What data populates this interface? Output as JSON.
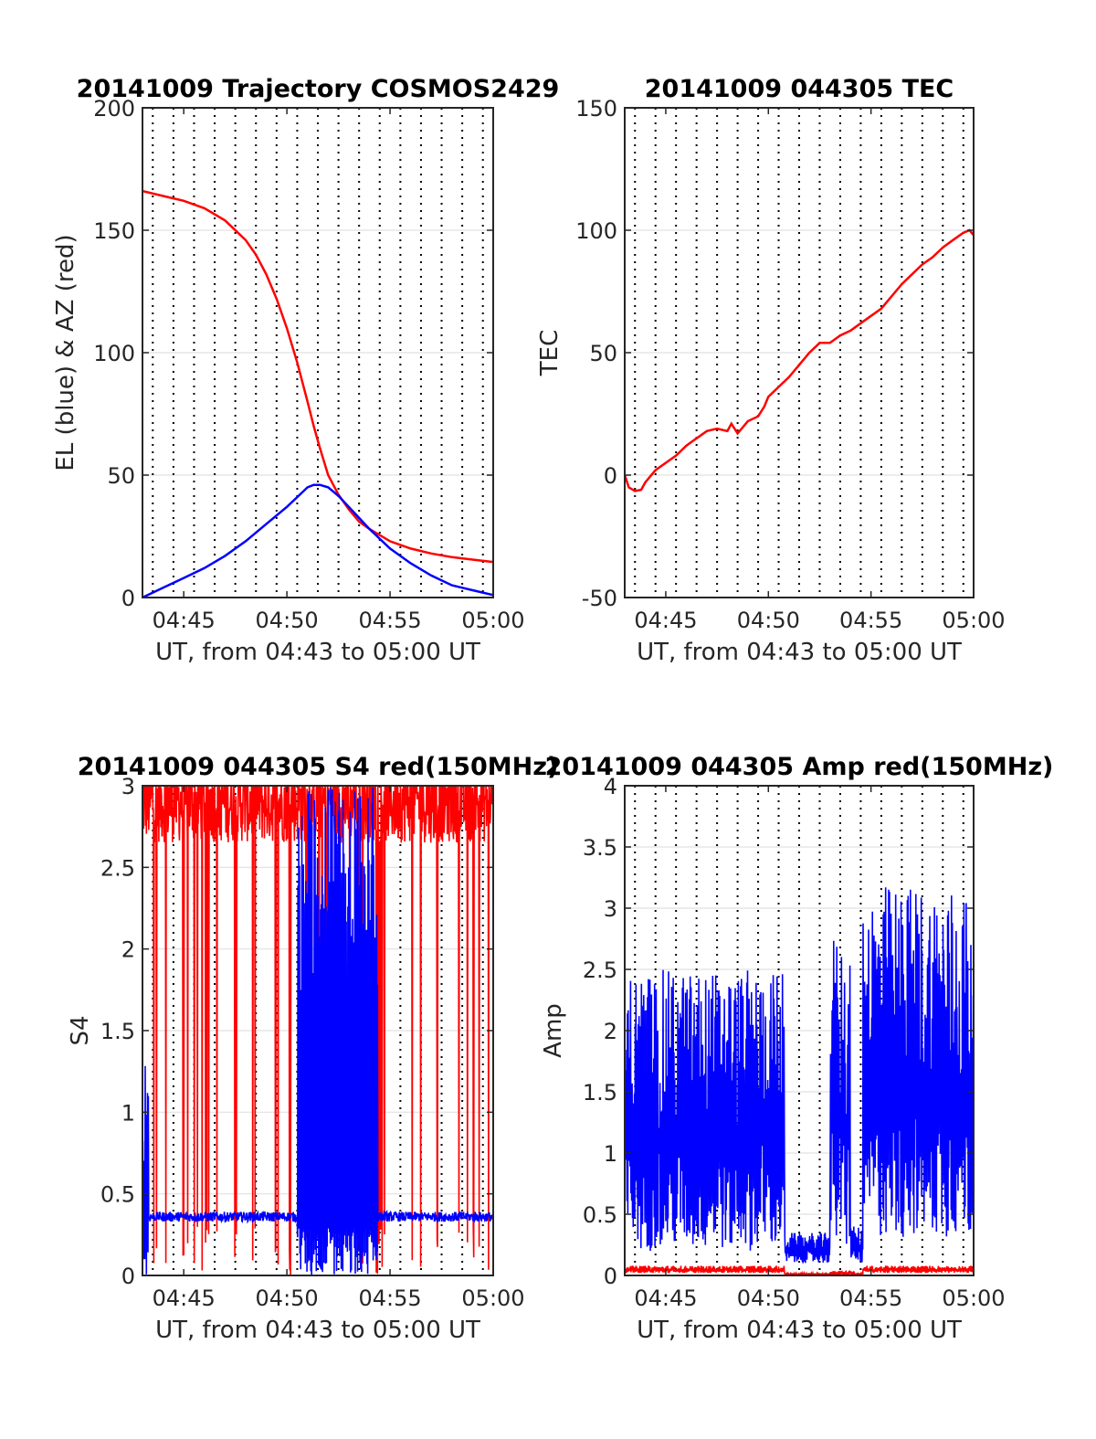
{
  "chart_data": [
    {
      "type": "line",
      "title": "20141009 Trajectory COSMOS2429",
      "xlabel": "UT, from 04:43 to 05:00 UT",
      "ylabel": "EL (blue) & AZ (red)",
      "xlim": [
        43,
        60
      ],
      "ylim": [
        0,
        200
      ],
      "x_ticks": [
        "04:45",
        "04:50",
        "04:55",
        "05:00"
      ],
      "x_tick_values": [
        45,
        50,
        55,
        60
      ],
      "y_ticks": [
        "0",
        "50",
        "100",
        "150",
        "200"
      ],
      "y_tick_values": [
        0,
        50,
        100,
        150,
        200
      ],
      "grid": "dotted vertical every 30 s, light horizontal",
      "series": [
        {
          "color": "#ff0000",
          "kind": "line",
          "x": [
            43.0,
            44.0,
            45.0,
            46.0,
            47.0,
            48.0,
            48.5,
            49.0,
            49.5,
            50.0,
            50.5,
            51.0,
            51.3,
            51.6,
            52.0,
            52.5,
            53.0,
            53.5,
            54.0,
            55.0,
            56.0,
            57.0,
            58.0,
            59.0,
            60.0
          ],
          "values": [
            166,
            164,
            162,
            159,
            154,
            146,
            140,
            132,
            122,
            110,
            96,
            80,
            70,
            61,
            50,
            42,
            36,
            31,
            28,
            23,
            20,
            18,
            16.5,
            15.5,
            14.5
          ]
        },
        {
          "color": "#0000ff",
          "kind": "line",
          "x": [
            43.0,
            44.0,
            45.0,
            46.0,
            47.0,
            48.0,
            49.0,
            50.0,
            50.5,
            51.0,
            51.3,
            51.6,
            52.0,
            52.5,
            53.0,
            53.5,
            54.0,
            55.0,
            56.0,
            57.0,
            58.0,
            59.0,
            60.0
          ],
          "values": [
            0,
            4,
            8,
            12,
            17,
            23,
            30,
            37,
            41,
            45,
            46,
            46,
            45,
            41.5,
            37,
            32.5,
            28,
            20,
            14,
            9,
            5,
            3,
            1
          ]
        }
      ]
    },
    {
      "type": "line",
      "title": "20141009 044305 TEC",
      "xlabel": "UT, from 04:43 to 05:00 UT",
      "ylabel": "TEC",
      "xlim": [
        43,
        60
      ],
      "ylim": [
        -50,
        150
      ],
      "x_ticks": [
        "04:45",
        "04:50",
        "04:55",
        "05:00"
      ],
      "x_tick_values": [
        45,
        50,
        55,
        60
      ],
      "y_ticks": [
        "-50",
        "0",
        "50",
        "100",
        "150"
      ],
      "y_tick_values": [
        -50,
        0,
        50,
        100,
        150
      ],
      "grid": "dotted vertical every 30 s, light horizontal",
      "series": [
        {
          "color": "#ff0000",
          "kind": "line",
          "x": [
            43.0,
            43.2,
            43.5,
            43.8,
            44.0,
            44.5,
            45.0,
            45.5,
            46.0,
            46.5,
            47.0,
            47.5,
            48.0,
            48.2,
            48.5,
            48.8,
            49.0,
            49.5,
            49.8,
            50.0,
            50.5,
            51.0,
            51.5,
            52.0,
            52.5,
            53.0,
            53.5,
            54.0,
            54.5,
            55.0,
            55.5,
            56.0,
            56.5,
            57.0,
            57.5,
            58.0,
            58.5,
            59.0,
            59.5,
            59.8,
            60.0
          ],
          "values": [
            0,
            -5,
            -6.5,
            -6,
            -3,
            2,
            5,
            8,
            12,
            15,
            18,
            19,
            18,
            21,
            17,
            20,
            22,
            24,
            28,
            32,
            36,
            40,
            45,
            50,
            54,
            54,
            57,
            59,
            62,
            65,
            68,
            73,
            78,
            82,
            86,
            89,
            93,
            96,
            99,
            100,
            98
          ]
        }
      ]
    },
    {
      "type": "line",
      "title": "20141009 044305 S4 red(150MHz)",
      "xlabel": "UT, from 04:43 to 05:00 UT",
      "ylabel": "S4",
      "xlim": [
        43,
        60
      ],
      "ylim": [
        0,
        3
      ],
      "x_ticks": [
        "04:45",
        "04:50",
        "04:55",
        "05:00"
      ],
      "x_tick_values": [
        45,
        50,
        55,
        60
      ],
      "y_ticks": [
        "0",
        "0.5",
        "1",
        "1.5",
        "2",
        "2.5",
        "3"
      ],
      "y_tick_values": [
        0,
        0.5,
        1,
        1.5,
        2,
        2.5,
        3
      ],
      "grid": "dotted vertical every 30 s, light horizontal",
      "series": [
        {
          "color": "#ff0000",
          "kind": "noise-band",
          "x_range": [
            43,
            60
          ],
          "base": 2.9,
          "amplitude": 0.5,
          "dropouts": 0.06
        },
        {
          "color": "#0000ff",
          "kind": "noise-band",
          "x_range": [
            43,
            60
          ],
          "base": 0.36,
          "amplitude": 0.06,
          "bursts": [
            [
              43.0,
              43.3,
              1.3
            ],
            [
              50.5,
              54.4,
              3.0
            ]
          ]
        }
      ]
    },
    {
      "type": "line",
      "title": "20141009 044305 Amp red(150MHz)",
      "xlabel": "UT, from 04:43 to 05:00 UT",
      "ylabel": "Amp",
      "xlim": [
        43,
        60
      ],
      "ylim": [
        0,
        4
      ],
      "x_ticks": [
        "04:45",
        "04:50",
        "04:55",
        "05:00"
      ],
      "x_tick_values": [
        45,
        50,
        55,
        60
      ],
      "y_ticks": [
        "0",
        "0.5",
        "1",
        "1.5",
        "2",
        "2.5",
        "3",
        "3.5",
        "4"
      ],
      "y_tick_values": [
        0,
        0.5,
        1,
        1.5,
        2,
        2.5,
        3,
        3.5,
        4
      ],
      "grid": "dotted vertical every 30 s, light horizontal",
      "series": [
        {
          "color": "#0000ff",
          "kind": "noise-band",
          "x_range": [
            43,
            60
          ],
          "segments": [
            [
              43.0,
              50.8,
              0.2,
              2.5
            ],
            [
              50.8,
              53.0,
              0.1,
              0.35
            ],
            [
              53.0,
              54.0,
              0.2,
              2.8
            ],
            [
              54.0,
              54.6,
              0.1,
              0.4
            ],
            [
              54.6,
              60.0,
              0.3,
              3.2
            ]
          ]
        },
        {
          "color": "#ff0000",
          "kind": "noise-band",
          "x_range": [
            43,
            60
          ],
          "segments": [
            [
              43.0,
              50.8,
              0.02,
              0.08
            ],
            [
              50.8,
              53.0,
              0.0,
              0.02
            ],
            [
              53.0,
              54.2,
              0.0,
              0.04
            ],
            [
              54.2,
              54.6,
              0.0,
              0.02
            ],
            [
              54.6,
              60.0,
              0.02,
              0.08
            ]
          ]
        }
      ]
    }
  ]
}
